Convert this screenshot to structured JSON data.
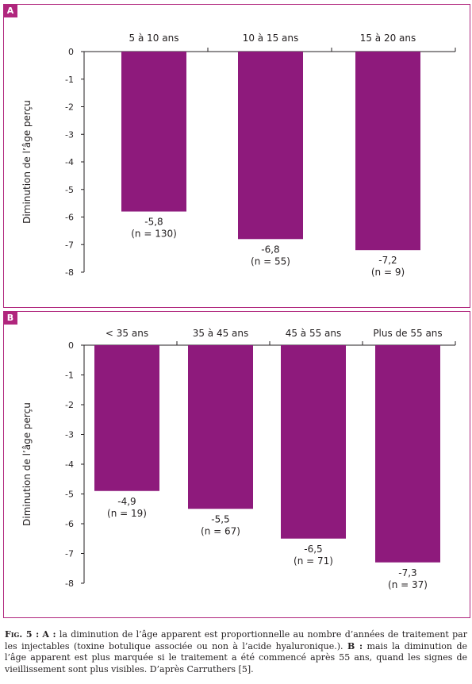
{
  "colors": {
    "bar": "#8e1a7c",
    "accent": "#b0267d"
  },
  "chart_data": [
    {
      "panel": "A",
      "type": "bar",
      "categories": [
        "5 à 10 ans",
        "10 à 15 ans",
        "15 à 20 ans"
      ],
      "values": [
        -5.8,
        -6.8,
        -7.2
      ],
      "value_labels": [
        "-5,8",
        "-6,8",
        "-7,2"
      ],
      "n_labels": [
        "(n = 130)",
        "(n = 55)",
        "(n = 9)"
      ],
      "ylabel": "Diminution de l’âge perçu",
      "ylim": [
        -8,
        0
      ],
      "yticks": [
        0,
        -1,
        -2,
        -3,
        -4,
        -5,
        -6,
        -7,
        -8
      ],
      "ytick_labels": [
        "0",
        "-1",
        "-2",
        "-3",
        "-4",
        "-5",
        "-6",
        "-7",
        "-8"
      ],
      "category_axis_position": "top",
      "grid": false
    },
    {
      "panel": "B",
      "type": "bar",
      "categories": [
        "< 35 ans",
        "35 à 45 ans",
        "45 à 55 ans",
        "Plus de 55 ans"
      ],
      "values": [
        -4.9,
        -5.5,
        -6.5,
        -7.3
      ],
      "value_labels": [
        "-4,9",
        "-5,5",
        "-6,5",
        "-7,3"
      ],
      "n_labels": [
        "(n = 19)",
        "(n = 67)",
        "(n = 71)",
        "(n = 37)"
      ],
      "ylabel": "Diminution de l’âge perçu",
      "ylim": [
        -8,
        0
      ],
      "yticks": [
        0,
        -1,
        -2,
        -3,
        -4,
        -5,
        -6,
        -7,
        -8
      ],
      "ytick_labels": [
        "0",
        "-1",
        "-2",
        "-3",
        "-4",
        "-5",
        "-6",
        "-7",
        "-8"
      ],
      "category_axis_position": "top",
      "grid": false
    }
  ],
  "caption": {
    "fig": "Fig. 5 :",
    "a_label": "A :",
    "a_text": " la diminution de l’âge apparent est proportionnelle au nombre d’années de traitement par les injectables (toxine botulique associée ou non à l’acide hyaluronique.).",
    "b_label": "B :",
    "b_text": " mais la diminution de l’âge apparent est plus marquée si le traitement a été commencé après 55 ans, quand les signes de vieillissement sont plus visibles. D’après Carruthers [5]."
  }
}
